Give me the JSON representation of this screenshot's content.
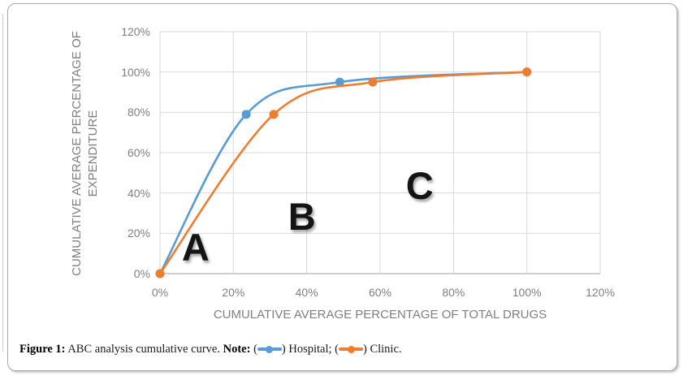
{
  "figure": {
    "caption": {
      "figure_label": "Figure 1:",
      "title_text": " ABC analysis cumulative curve. ",
      "note_label": "Note:",
      "pre_hospital_glyph": " (",
      "post_hospital_glyph": ") Hospital; (",
      "post_clinic_glyph": ") Clinic."
    }
  },
  "chart_data": {
    "type": "line",
    "title": "",
    "xlabel": "CUMULATIVE AVERAGE PERCENTAGE OF TOTAL DRUGS",
    "ylabel_line1": "CUMULATIVE AVERAGE PERCENTAGE OF",
    "ylabel_line2": "EXPENDITURE",
    "xlim": [
      0,
      120
    ],
    "ylim": [
      0,
      120
    ],
    "grid": true,
    "smooth": true,
    "legend_position": "in-caption",
    "xticks": {
      "values": [
        0,
        20,
        40,
        60,
        80,
        100,
        120
      ],
      "labels": [
        "0%",
        "20%",
        "40%",
        "60%",
        "80%",
        "100%",
        "120%"
      ]
    },
    "yticks": {
      "values": [
        0,
        20,
        40,
        60,
        80,
        100,
        120
      ],
      "labels": [
        "0%",
        "20%",
        "40%",
        "60%",
        "80%",
        "100%",
        "120%"
      ]
    },
    "series": [
      {
        "name": "Hospital",
        "color": "#5B9BD5",
        "x": [
          0,
          23.5,
          49,
          100
        ],
        "y": [
          0,
          79,
          95,
          100
        ]
      },
      {
        "name": "Clinic",
        "color": "#ED7D31",
        "x": [
          0,
          31,
          58,
          100
        ],
        "y": [
          0,
          79,
          95,
          100
        ]
      }
    ],
    "zone_labels": [
      {
        "text": "A",
        "x": 9.7,
        "y": 12.9
      },
      {
        "text": "B",
        "x": 38.7,
        "y": 28.2
      },
      {
        "text": "C",
        "x": 70.8,
        "y": 43.5
      }
    ],
    "colors": {
      "gridline": "#D9D9D9",
      "axis_line": "#BFBFBF",
      "tick_text": "#7F7F7F",
      "border": "#AAAAAA"
    }
  }
}
